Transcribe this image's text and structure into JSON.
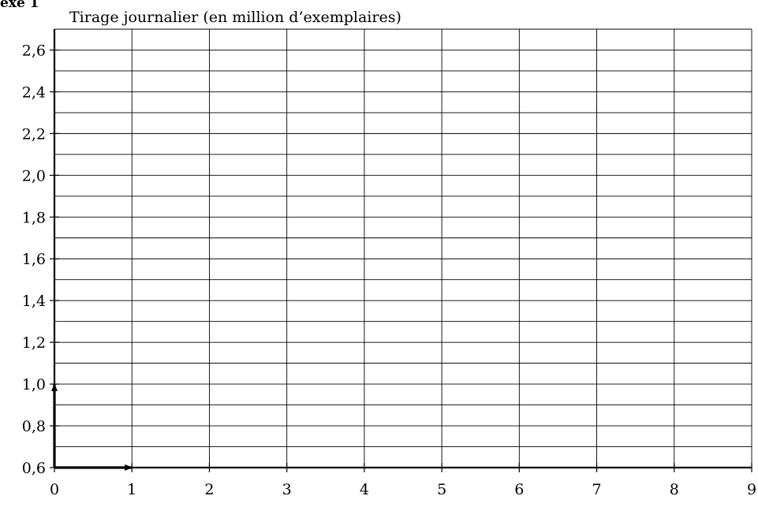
{
  "annex_label": "exe 1",
  "chart_data": {
    "type": "line",
    "title": "",
    "ylabel": "Tirage journalier (en million d’exemplaires)",
    "xlabel": "",
    "x_ticks": [
      "0",
      "1",
      "2",
      "3",
      "4",
      "5",
      "6",
      "7",
      "8",
      "9"
    ],
    "y_ticks": [
      "0,6",
      "0,8",
      "1,0",
      "1,2",
      "1,4",
      "1,6",
      "1,8",
      "2,0",
      "2,2",
      "2,4",
      "2,6"
    ],
    "xlim": [
      0,
      9
    ],
    "ylim": [
      0.6,
      2.7
    ],
    "x_grid_step": 1,
    "y_grid_step": 0.1,
    "grid": true,
    "series": [],
    "unit_vectors": {
      "i": {
        "from": [
          0,
          0.6
        ],
        "to": [
          1,
          0.6
        ]
      },
      "j": {
        "from": [
          0,
          0.6
        ],
        "to": [
          0,
          1.0
        ]
      }
    }
  }
}
